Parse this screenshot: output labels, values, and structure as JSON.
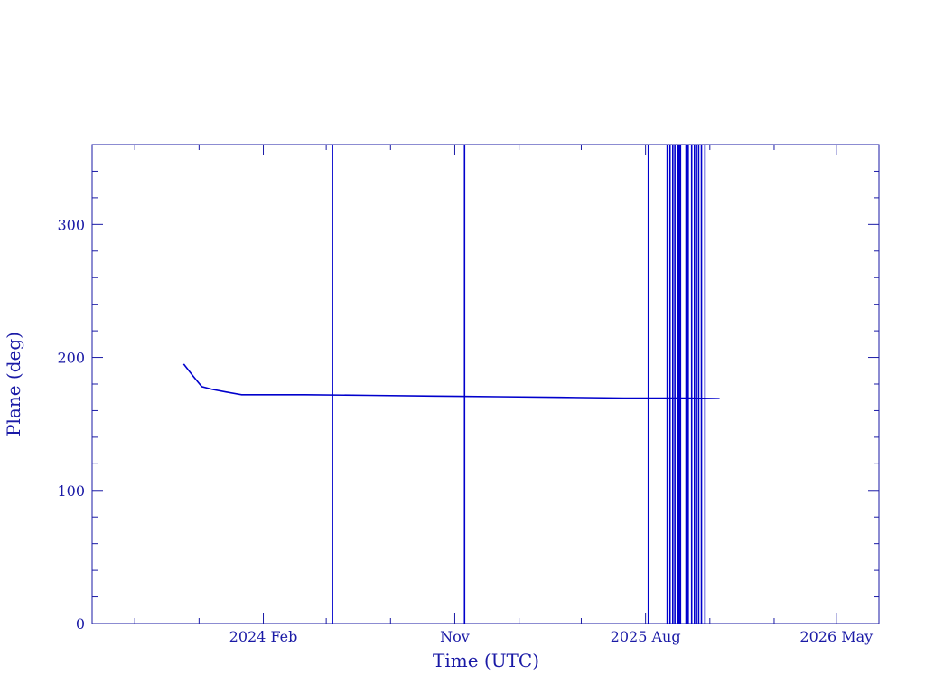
{
  "colors": {
    "axis": "#1a1aa6",
    "series": "#0000cc",
    "background": "#ffffff"
  },
  "chart_data": {
    "type": "line",
    "title": "",
    "xlabel": "Time (UTC)",
    "ylabel": "Plane (deg)",
    "x_axis_kind": "date",
    "xlim": [
      "2023-06-01",
      "2026-07-01"
    ],
    "ylim": [
      0,
      360
    ],
    "yticks": [
      0,
      100,
      200,
      300
    ],
    "ytick_labels": [
      "0",
      "100",
      "200",
      "300"
    ],
    "xticks": [
      {
        "date": "2024-02-01",
        "label": "2024 Feb"
      },
      {
        "date": "2024-11-01",
        "label": "Nov"
      },
      {
        "date": "2025-08-01",
        "label": "2025 Aug"
      },
      {
        "date": "2026-05-01",
        "label": "2026 May"
      }
    ],
    "x_minor_tick_dates": [
      "2023-08-01",
      "2023-11-01",
      "2024-05-01",
      "2024-08-01",
      "2025-02-01",
      "2025-05-01",
      "2025-11-01",
      "2026-02-01"
    ],
    "grid": false,
    "legend": "none",
    "series": [
      {
        "x": [
          "2023-10-10",
          "2023-10-25",
          "2023-11-05",
          "2023-11-20",
          "2023-12-10",
          "2024-01-01",
          "2024-04-01",
          "2024-07-01",
          "2024-10-01",
          "2025-01-01",
          "2025-04-01",
          "2025-07-01",
          "2025-10-01",
          "2025-11-15"
        ],
        "y": [
          195,
          185,
          178,
          176,
          174,
          172,
          172,
          171.5,
          171,
          170.5,
          170,
          169.5,
          169.5,
          169
        ]
      }
    ],
    "wrap_lines_x": [
      "2024-05-10",
      "2024-11-15",
      "2025-08-05",
      "2025-09-01",
      "2025-09-05",
      "2025-09-09",
      "2025-09-12",
      "2025-09-16",
      "2025-09-18",
      "2025-09-20",
      "2025-09-28",
      "2025-10-01",
      "2025-10-06",
      "2025-10-10",
      "2025-10-13",
      "2025-10-16",
      "2025-10-20",
      "2025-10-25"
    ]
  }
}
